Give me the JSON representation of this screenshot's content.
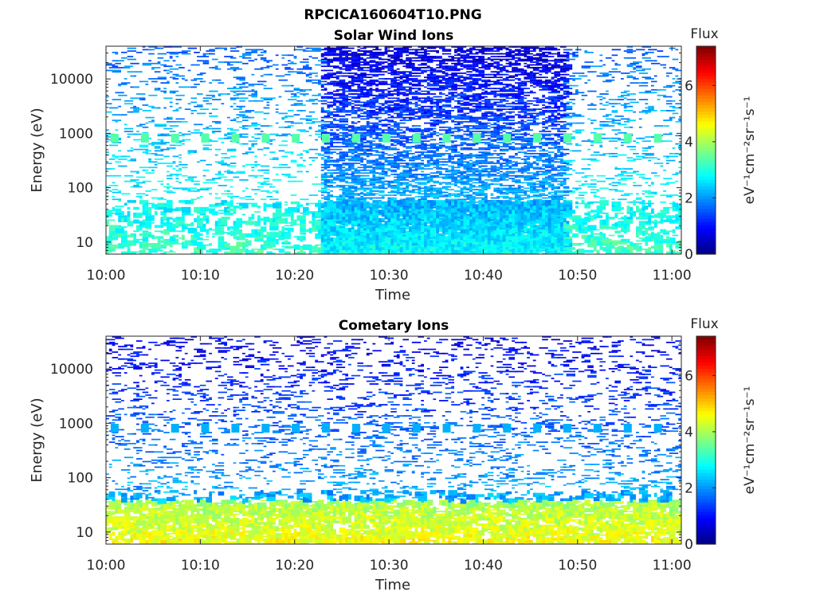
{
  "figure": {
    "title": "RPCICA160604T10.PNG",
    "colorbar_label": "Flux",
    "colorbar_unit": "eV⁻¹cm⁻²sr⁻¹s⁻¹"
  },
  "chart_data": [
    {
      "type": "heatmap",
      "title": "Solar Wind Ions",
      "xlabel": "Time",
      "ylabel": "Energy (eV)",
      "xticks": [
        "10:00",
        "10:10",
        "10:20",
        "10:30",
        "10:40",
        "10:50",
        "11:00"
      ],
      "xlim_minutes": [
        0,
        61
      ],
      "yticks": [
        10,
        100,
        1000,
        10000
      ],
      "ylim": [
        6,
        40000
      ],
      "yscale": "log",
      "colormap": "jet",
      "clim": [
        0,
        7.4
      ],
      "colorbar_ticks": [
        0,
        2,
        4,
        6
      ],
      "colorbar_label": "Flux",
      "bands": [
        {
          "x_range": [
            0,
            23
          ],
          "energy_range": [
            6,
            40000
          ],
          "flux_low": 1.6,
          "flux_high": 3.2,
          "coverage": "sparse"
        },
        {
          "x_range": [
            23,
            48.5
          ],
          "energy_range": [
            6,
            40000
          ],
          "flux_low": 0.6,
          "flux_high": 2.8,
          "coverage": "dense"
        },
        {
          "x_range": [
            48.5,
            61
          ],
          "energy_range": [
            6,
            40000
          ],
          "flux_low": 1.6,
          "flux_high": 3.2,
          "coverage": "sparse"
        }
      ],
      "peak_energy_eV": 800,
      "peak_flux": 3.4
    },
    {
      "type": "heatmap",
      "title": "Cometary Ions",
      "xlabel": "Time",
      "ylabel": "Energy (eV)",
      "xticks": [
        "10:00",
        "10:10",
        "10:20",
        "10:30",
        "10:40",
        "10:50",
        "11:00"
      ],
      "xlim_minutes": [
        0,
        61
      ],
      "yticks": [
        10,
        100,
        1000,
        10000
      ],
      "ylim": [
        6,
        40000
      ],
      "yscale": "log",
      "colormap": "jet",
      "clim": [
        0,
        7.4
      ],
      "colorbar_ticks": [
        0,
        2,
        4,
        6
      ],
      "colorbar_label": "Flux",
      "bands": [
        {
          "x_range": [
            0,
            61
          ],
          "energy_range": [
            6,
            40
          ],
          "flux_low": 1.8,
          "flux_high": 4.6,
          "coverage": "medium"
        },
        {
          "x_range": [
            0,
            61
          ],
          "energy_range": [
            40,
            40000
          ],
          "flux_low": 0.8,
          "flux_high": 2.6,
          "coverage": "sparse"
        }
      ],
      "peak_energy_eV": 800,
      "peak_flux": 2.2
    }
  ]
}
